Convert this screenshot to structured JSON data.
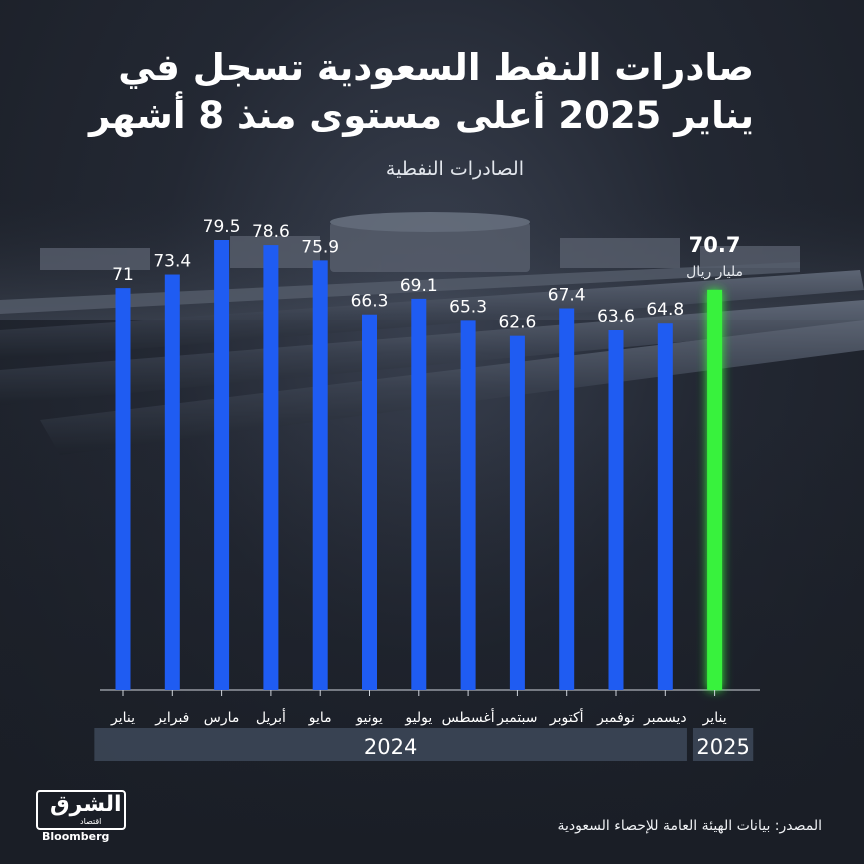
{
  "header": {
    "title_line1": "صادرات النفط السعودية تسجل في",
    "title_line2": "يناير 2025 أعلى مستوى منذ 8 أشهر",
    "subtitle": "الصادرات النفطية"
  },
  "chart_data": {
    "type": "bar",
    "categories": [
      "يناير",
      "فبراير",
      "مارس",
      "أبريل",
      "مايو",
      "يونيو",
      "يوليو",
      "أغسطس",
      "سبتمبر",
      "أكتوبر",
      "نوفمبر",
      "ديسمبر",
      "يناير"
    ],
    "values": [
      71,
      73.4,
      79.5,
      78.6,
      75.9,
      66.3,
      69.1,
      65.3,
      62.6,
      67.4,
      63.6,
      64.8,
      70.7
    ],
    "value_labels": [
      "71",
      "73.4",
      "79.5",
      "78.6",
      "75.9",
      "66.3",
      "69.1",
      "65.3",
      "62.6",
      "67.4",
      "63.6",
      "64.8",
      "70.7"
    ],
    "unit_label": "مليار ريال",
    "year_groups": [
      {
        "label": "2024",
        "count": 12
      },
      {
        "label": "2025",
        "count": 1
      }
    ],
    "highlight_index": 12,
    "colors": {
      "bar": "#1f5cf2",
      "highlight": "#37f23c"
    },
    "ylim": [
      0,
      80
    ]
  },
  "footer": {
    "source": "المصدر: بيانات الهيئة العامة للإحصاء السعودية",
    "logo_ar": "الشرق",
    "logo_sub": "اقتصاد",
    "logo_en": "Bloomberg"
  }
}
